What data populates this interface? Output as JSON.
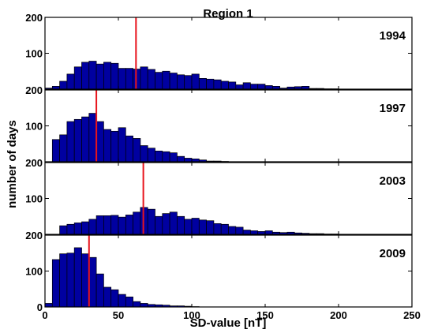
{
  "chart_data": {
    "type": "bar",
    "title": "Region 1",
    "xlabel": "SD-value [nT]",
    "ylabel": "number of days",
    "xlim": [
      0,
      250
    ],
    "ylim": [
      0,
      200
    ],
    "xticks": [
      0,
      50,
      100,
      150,
      200,
      250
    ],
    "yticks": [
      0,
      100,
      200
    ],
    "bin_width": 5,
    "bar_color": "#0000a0",
    "marker_color": "#e8141c",
    "grid": false,
    "panels": [
      {
        "year": "1994",
        "marker": 62,
        "bins": [
          {
            "x": 0,
            "y": 3
          },
          {
            "x": 5,
            "y": 8
          },
          {
            "x": 10,
            "y": 22
          },
          {
            "x": 15,
            "y": 42
          },
          {
            "x": 20,
            "y": 62
          },
          {
            "x": 25,
            "y": 75
          },
          {
            "x": 30,
            "y": 78
          },
          {
            "x": 35,
            "y": 70
          },
          {
            "x": 40,
            "y": 75
          },
          {
            "x": 45,
            "y": 72
          },
          {
            "x": 50,
            "y": 58
          },
          {
            "x": 55,
            "y": 58
          },
          {
            "x": 60,
            "y": 56
          },
          {
            "x": 65,
            "y": 62
          },
          {
            "x": 70,
            "y": 55
          },
          {
            "x": 75,
            "y": 47
          },
          {
            "x": 80,
            "y": 50
          },
          {
            "x": 85,
            "y": 45
          },
          {
            "x": 90,
            "y": 40
          },
          {
            "x": 95,
            "y": 38
          },
          {
            "x": 100,
            "y": 42
          },
          {
            "x": 105,
            "y": 30
          },
          {
            "x": 110,
            "y": 28
          },
          {
            "x": 115,
            "y": 26
          },
          {
            "x": 120,
            "y": 22
          },
          {
            "x": 125,
            "y": 20
          },
          {
            "x": 130,
            "y": 12
          },
          {
            "x": 135,
            "y": 18
          },
          {
            "x": 140,
            "y": 14
          },
          {
            "x": 145,
            "y": 14
          },
          {
            "x": 150,
            "y": 10
          },
          {
            "x": 155,
            "y": 8
          },
          {
            "x": 160,
            "y": 3
          },
          {
            "x": 165,
            "y": 6
          },
          {
            "x": 170,
            "y": 7
          },
          {
            "x": 175,
            "y": 8
          },
          {
            "x": 180,
            "y": 2
          },
          {
            "x": 185,
            "y": 2
          },
          {
            "x": 190,
            "y": 1
          },
          {
            "x": 195,
            "y": 1
          }
        ]
      },
      {
        "year": "1997",
        "marker": 35,
        "bins": [
          {
            "x": 5,
            "y": 62
          },
          {
            "x": 10,
            "y": 75
          },
          {
            "x": 15,
            "y": 112
          },
          {
            "x": 20,
            "y": 118
          },
          {
            "x": 25,
            "y": 125
          },
          {
            "x": 30,
            "y": 135
          },
          {
            "x": 35,
            "y": 112
          },
          {
            "x": 40,
            "y": 90
          },
          {
            "x": 45,
            "y": 85
          },
          {
            "x": 50,
            "y": 95
          },
          {
            "x": 55,
            "y": 72
          },
          {
            "x": 60,
            "y": 65
          },
          {
            "x": 65,
            "y": 45
          },
          {
            "x": 70,
            "y": 38
          },
          {
            "x": 75,
            "y": 30
          },
          {
            "x": 80,
            "y": 28
          },
          {
            "x": 85,
            "y": 25
          },
          {
            "x": 90,
            "y": 15
          },
          {
            "x": 95,
            "y": 10
          },
          {
            "x": 100,
            "y": 8
          },
          {
            "x": 105,
            "y": 5
          },
          {
            "x": 110,
            "y": 2
          },
          {
            "x": 115,
            "y": 2
          },
          {
            "x": 120,
            "y": 1
          }
        ]
      },
      {
        "year": "2003",
        "marker": 67,
        "bins": [
          {
            "x": 10,
            "y": 24
          },
          {
            "x": 15,
            "y": 28
          },
          {
            "x": 20,
            "y": 32
          },
          {
            "x": 25,
            "y": 35
          },
          {
            "x": 30,
            "y": 42
          },
          {
            "x": 35,
            "y": 52
          },
          {
            "x": 40,
            "y": 52
          },
          {
            "x": 45,
            "y": 53
          },
          {
            "x": 50,
            "y": 48
          },
          {
            "x": 55,
            "y": 54
          },
          {
            "x": 60,
            "y": 62
          },
          {
            "x": 65,
            "y": 75
          },
          {
            "x": 70,
            "y": 70
          },
          {
            "x": 75,
            "y": 50
          },
          {
            "x": 80,
            "y": 58
          },
          {
            "x": 85,
            "y": 62
          },
          {
            "x": 90,
            "y": 50
          },
          {
            "x": 95,
            "y": 42
          },
          {
            "x": 100,
            "y": 45
          },
          {
            "x": 105,
            "y": 40
          },
          {
            "x": 110,
            "y": 38
          },
          {
            "x": 115,
            "y": 30
          },
          {
            "x": 120,
            "y": 28
          },
          {
            "x": 125,
            "y": 22
          },
          {
            "x": 130,
            "y": 20
          },
          {
            "x": 135,
            "y": 12
          },
          {
            "x": 140,
            "y": 10
          },
          {
            "x": 145,
            "y": 8
          },
          {
            "x": 150,
            "y": 10
          },
          {
            "x": 155,
            "y": 6
          },
          {
            "x": 160,
            "y": 5
          },
          {
            "x": 165,
            "y": 6
          },
          {
            "x": 170,
            "y": 4
          },
          {
            "x": 175,
            "y": 3
          },
          {
            "x": 180,
            "y": 2
          },
          {
            "x": 185,
            "y": 2
          },
          {
            "x": 190,
            "y": 1
          },
          {
            "x": 195,
            "y": 1
          }
        ]
      },
      {
        "year": "2009",
        "marker": 30,
        "bins": [
          {
            "x": 0,
            "y": 10
          },
          {
            "x": 5,
            "y": 132
          },
          {
            "x": 10,
            "y": 148
          },
          {
            "x": 15,
            "y": 150
          },
          {
            "x": 20,
            "y": 165
          },
          {
            "x": 25,
            "y": 148
          },
          {
            "x": 30,
            "y": 138
          },
          {
            "x": 35,
            "y": 92
          },
          {
            "x": 40,
            "y": 55
          },
          {
            "x": 45,
            "y": 48
          },
          {
            "x": 50,
            "y": 35
          },
          {
            "x": 55,
            "y": 28
          },
          {
            "x": 60,
            "y": 15
          },
          {
            "x": 65,
            "y": 10
          },
          {
            "x": 70,
            "y": 7
          },
          {
            "x": 75,
            "y": 6
          },
          {
            "x": 80,
            "y": 5
          },
          {
            "x": 85,
            "y": 3
          },
          {
            "x": 90,
            "y": 3
          },
          {
            "x": 95,
            "y": 2
          },
          {
            "x": 100,
            "y": 1
          }
        ]
      }
    ]
  }
}
